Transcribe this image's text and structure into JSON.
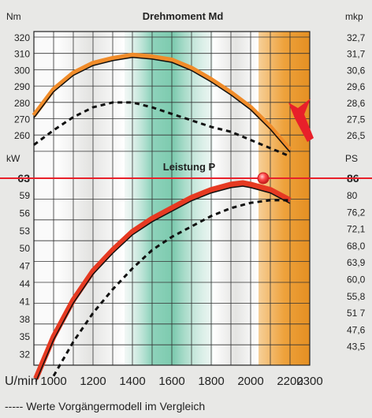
{
  "chart_data": {
    "type": "line",
    "title": "Drehmoment Md",
    "subtitle": "Leistung P",
    "xlabel": "U/min",
    "footnote": "----- Werte Vorgängermodell im Vergleich",
    "x_ticks": [
      "1000",
      "1200",
      "1400",
      "1600",
      "1800",
      "2000",
      "2200",
      "2300"
    ],
    "left_axis": {
      "torque_unit": "Nm",
      "torque_ticks": [
        "320",
        "310",
        "300",
        "290",
        "280",
        "270",
        "260"
      ],
      "power_unit": "kW",
      "power_ticks": [
        "63",
        "59",
        "56",
        "53",
        "50",
        "47",
        "44",
        "41",
        "38",
        "35",
        "32"
      ]
    },
    "right_axis": {
      "torque_unit": "mkp",
      "torque_ticks": [
        "32,7",
        "31,7",
        "30,6",
        "29,6",
        "28,6",
        "27,5",
        "26,5"
      ],
      "power_unit": "PS",
      "power_ticks": [
        "86",
        "80",
        "76,2",
        "72,1",
        "68,0",
        "63,9",
        "60,0",
        "55,8",
        "51 7",
        "47,6",
        "43,5"
      ]
    },
    "max_power_kw": 63,
    "max_power_ps": 86,
    "xlim": [
      900,
      2300
    ],
    "torque_ylim": [
      255,
      325
    ],
    "power_ylim": [
      26,
      66
    ],
    "series": [
      {
        "x": [
          900,
          1000,
          1100,
          1200,
          1300,
          1400,
          1500,
          1600,
          1700,
          1800,
          1900,
          2000,
          2100,
          2200
        ],
        "values": [
          277,
          293,
          303,
          309,
          312,
          314,
          313,
          311,
          306,
          299,
          291,
          282,
          270,
          256
        ]
      },
      {
        "x": [
          900,
          1000,
          1100,
          1200,
          1300,
          1400,
          1500,
          1600,
          1700,
          1800,
          1900,
          2000,
          2100,
          2200
        ],
        "values": [
          259,
          268,
          276,
          282,
          285,
          285,
          282,
          278,
          274,
          270,
          267,
          262,
          257,
          252
        ]
      },
      {
        "x": [
          910,
          1000,
          1100,
          1200,
          1300,
          1400,
          1500,
          1600,
          1700,
          1800,
          1900,
          1960,
          2000,
          2100,
          2200
        ],
        "values": [
          26,
          34,
          41,
          46.5,
          50.5,
          54,
          56.5,
          58.5,
          60.5,
          62,
          63,
          63.3,
          63,
          62,
          60
        ]
      },
      {
        "x": [
          1000,
          1100,
          1200,
          1300,
          1400,
          1500,
          1600,
          1700,
          1800,
          1900,
          2000,
          2100,
          2200
        ],
        "values": [
          26.5,
          33,
          38.5,
          43,
          47,
          50.5,
          53,
          55,
          57,
          58.5,
          59.5,
          60,
          60
        ]
      }
    ],
    "colors": {
      "torque_line": "#f08c2a",
      "power_line": "#e63a22",
      "max_power_line": "#e8202a",
      "green_band": "#9fd9c4",
      "orange_band": "#efa640",
      "marker": "#ff4a4a"
    },
    "grid": true
  }
}
